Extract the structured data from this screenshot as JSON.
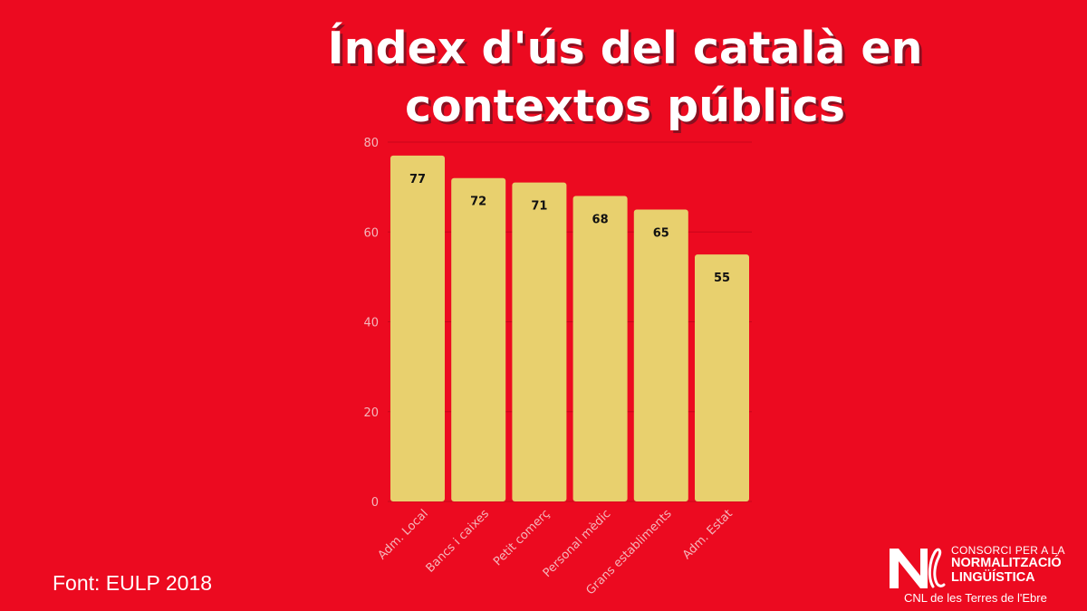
{
  "title": {
    "line1": "Índex d'ús del català en",
    "line2": "contextos públics"
  },
  "colors": {
    "background": "#ec0a20",
    "bar": "#e8d06e",
    "axis_text": "#f4b6bb",
    "value_text": "#111111",
    "title": "#ffffff"
  },
  "chart_data": {
    "type": "bar",
    "title": "Índex d'ús del català en contextos públics",
    "xlabel": "",
    "ylabel": "",
    "categories": [
      "Adm. Local",
      "Bancs i caixes",
      "Petit comerç",
      "Personal mèdic",
      "Grans establiments",
      "Adm. Estat"
    ],
    "values": [
      77,
      72,
      71,
      68,
      65,
      55
    ],
    "ylim": [
      0,
      80
    ],
    "yticks": [
      0,
      20,
      40,
      60,
      80
    ],
    "grid": true,
    "data_labels": true
  },
  "source": "Font: EULP 2018",
  "logo": {
    "line1": "CONSORCI PER A LA",
    "line2": "NORMALITZACIÓ",
    "line3": "LINGÜÍSTICA",
    "sub": "CNL de les Terres de l'Ebre"
  }
}
